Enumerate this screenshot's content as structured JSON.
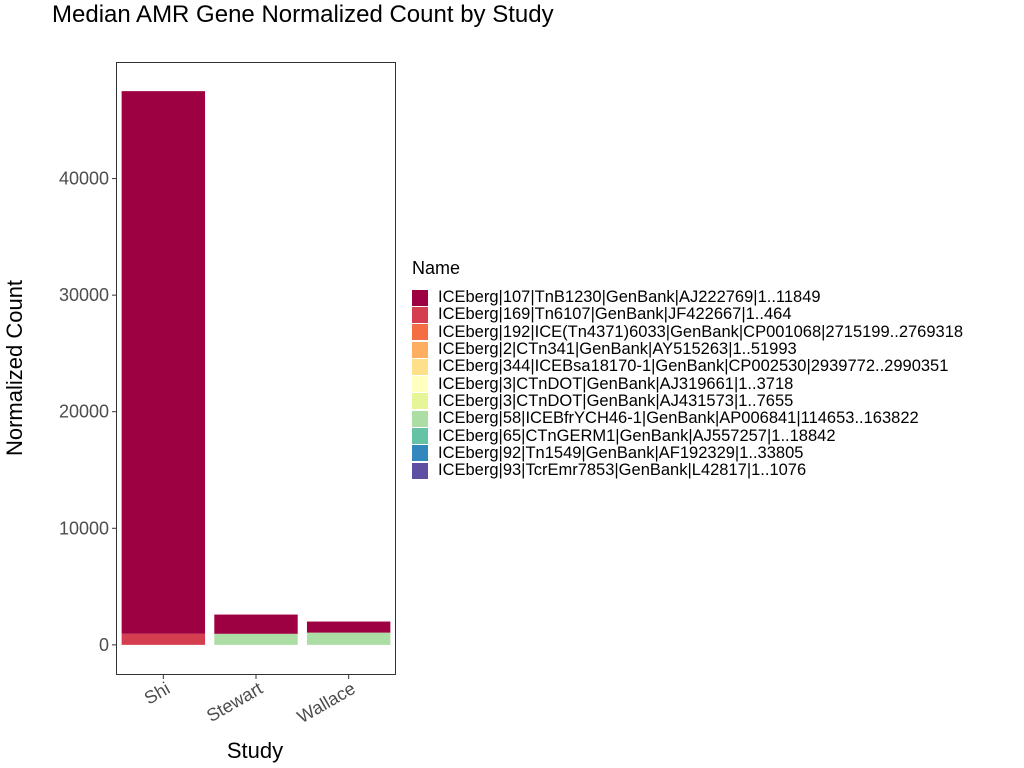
{
  "chart_data": {
    "type": "bar",
    "stacked": true,
    "title": "Median AMR Gene Normalized Count by Study",
    "xlabel": "Study",
    "ylabel": "Normalized Count",
    "categories": [
      "Shi",
      "Stewart",
      "Wallace"
    ],
    "ylim": [
      -2500,
      50000
    ],
    "yticks": [
      0,
      10000,
      20000,
      30000,
      40000
    ],
    "grid": false,
    "legend": {
      "title": "Name",
      "placement": "right",
      "items": [
        {
          "label": "ICEberg|107|TnB1230|GenBank|AJ222769|1..11849",
          "color": "#9E0142"
        },
        {
          "label": "ICEberg|169|Tn6107|GenBank|JF422667|1..464",
          "color": "#D53E4F"
        },
        {
          "label": "ICEberg|192|ICE(Tn4371)6033|GenBank|CP001068|2715199..2769318",
          "color": "#F46D43"
        },
        {
          "label": "ICEberg|2|CTn341|GenBank|AY515263|1..51993",
          "color": "#FDAE61"
        },
        {
          "label": "ICEberg|344|ICEBsa18170-1|GenBank|CP002530|2939772..2990351",
          "color": "#FEE08B"
        },
        {
          "label": "ICEberg|3|CTnDOT|GenBank|AJ319661|1..3718",
          "color": "#FFFFBF"
        },
        {
          "label": "ICEberg|3|CTnDOT|GenBank|AJ431573|1..7655",
          "color": "#E6F598"
        },
        {
          "label": "ICEberg|58|ICEBfrYCH46-1|GenBank|AP006841|114653..163822",
          "color": "#ABDDA4"
        },
        {
          "label": "ICEberg|65|CTnGERM1|GenBank|AJ557257|1..18842",
          "color": "#66C2A5"
        },
        {
          "label": "ICEberg|92|Tn1549|GenBank|AF192329|1..33805",
          "color": "#3288BD"
        },
        {
          "label": "ICEberg|93|TcrEmr7853|GenBank|L42817|1..1076",
          "color": "#5E4FA2"
        }
      ]
    },
    "series": [
      {
        "name": "ICEberg|169|Tn6107|GenBank|JF422667|1..464",
        "color": "#D53E4F",
        "values": [
          950,
          0,
          0
        ]
      },
      {
        "name": "ICEberg|58|ICEBfrYCH46-1|GenBank|AP006841|114653..163822",
        "color": "#ABDDA4",
        "values": [
          0,
          950,
          1050
        ]
      },
      {
        "name": "ICEberg|107|TnB1230|GenBank|AJ222769|1..11849",
        "color": "#9E0142",
        "values": [
          46550,
          1650,
          950
        ]
      }
    ]
  }
}
